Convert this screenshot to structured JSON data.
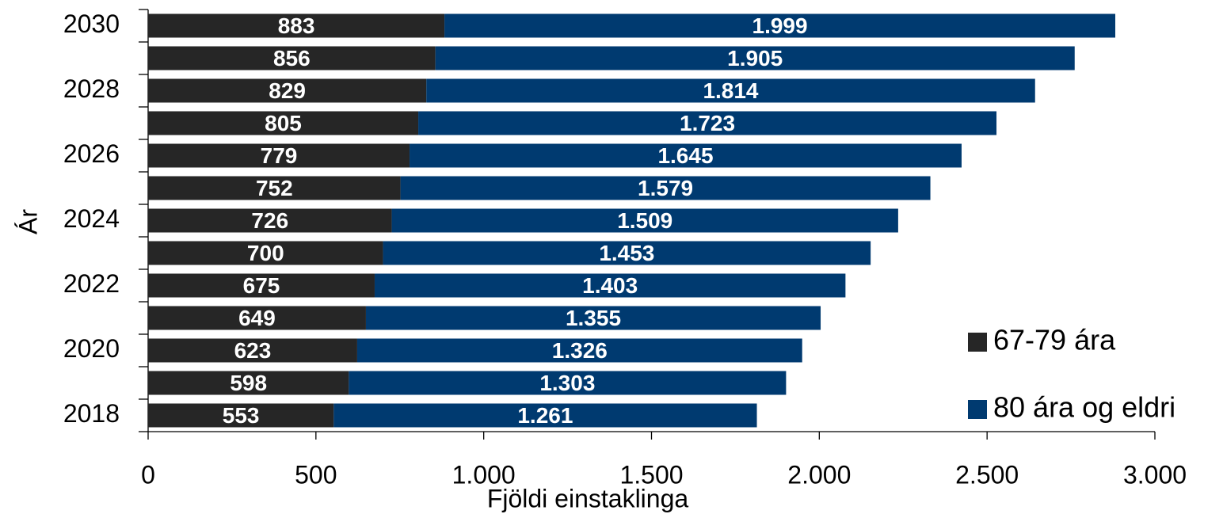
{
  "chart_data": {
    "type": "stacked-bar-horizontal",
    "x_label": "Fjöldi einstaklinga",
    "y_label": "Ár",
    "categories": [
      "2018",
      null,
      "2020",
      null,
      "2022",
      null,
      "2024",
      null,
      "2026",
      null,
      "2028",
      null,
      "2030"
    ],
    "series": [
      {
        "name": "67-79 ára",
        "color": "#262626",
        "values": [
          553,
          598,
          623,
          649,
          675,
          700,
          726,
          752,
          779,
          805,
          829,
          856,
          883
        ]
      },
      {
        "name": "80 ára og eldri",
        "color": "#003a70",
        "values": [
          1261,
          1303,
          1326,
          1355,
          1403,
          1453,
          1509,
          1579,
          1645,
          1723,
          1814,
          1905,
          1999
        ],
        "value_labels": [
          "1.261",
          "1.303",
          "1.326",
          "1.355",
          "1.403",
          "1.453",
          "1.509",
          "1.579",
          "1.645",
          "1.723",
          "1.814",
          "1.905",
          "1.999"
        ]
      }
    ],
    "xlim": [
      0,
      3000
    ],
    "xticks": [
      0,
      500,
      {
        "value": 1000,
        "label": "1.000"
      },
      {
        "value": 1500,
        "label": "1.500"
      },
      {
        "value": 2000,
        "label": "2.000"
      },
      {
        "value": 2500,
        "label": "2.500"
      },
      {
        "value": 3000,
        "label": "3.000"
      }
    ],
    "grid": false
  }
}
